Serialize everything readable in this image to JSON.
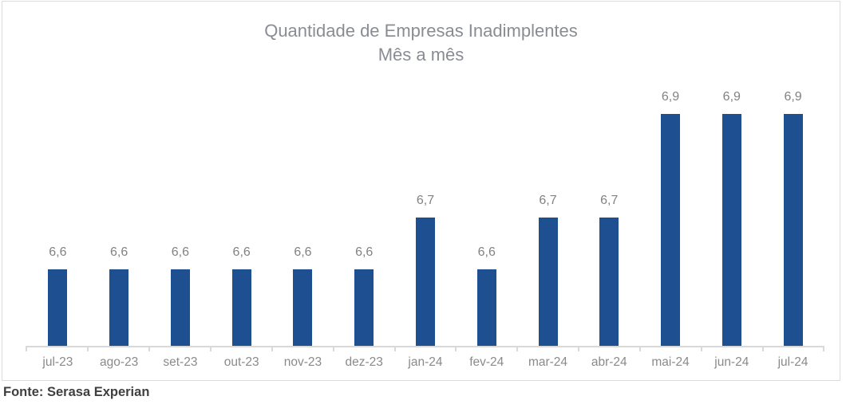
{
  "chart": {
    "title_line1": "Quantidade de Empresas Inadimplentes",
    "title_line2": "Mês a mês",
    "source_note": "Fonte: Serasa Experian",
    "colors": {
      "bar": "#1D4F91",
      "title_text": "#898D93",
      "label_text": "#828282",
      "axis_line": "#D9D9D9",
      "source_text": "#3F3F3F"
    }
  },
  "chart_data": {
    "type": "bar",
    "title": "Quantidade de Empresas Inadimplentes",
    "subtitle": "Mês a mês",
    "categories": [
      "jul-23",
      "ago-23",
      "set-23",
      "out-23",
      "nov-23",
      "dez-23",
      "jan-24",
      "fev-24",
      "mar-24",
      "abr-24",
      "mai-24",
      "jun-24",
      "jul-24"
    ],
    "values": [
      6.6,
      6.6,
      6.6,
      6.6,
      6.6,
      6.6,
      6.7,
      6.6,
      6.7,
      6.7,
      6.9,
      6.9,
      6.9
    ],
    "value_labels": [
      "6,6",
      "6,6",
      "6,6",
      "6,6",
      "6,6",
      "6,6",
      "6,7",
      "6,6",
      "6,7",
      "6,7",
      "6,9",
      "6,9",
      "6,9"
    ],
    "xlabel": "",
    "ylabel": "",
    "ylim": [
      6.45,
      7.0
    ],
    "grid": false,
    "legend": false,
    "data_labels": true,
    "annotation": "Fonte: Serasa Experian"
  }
}
